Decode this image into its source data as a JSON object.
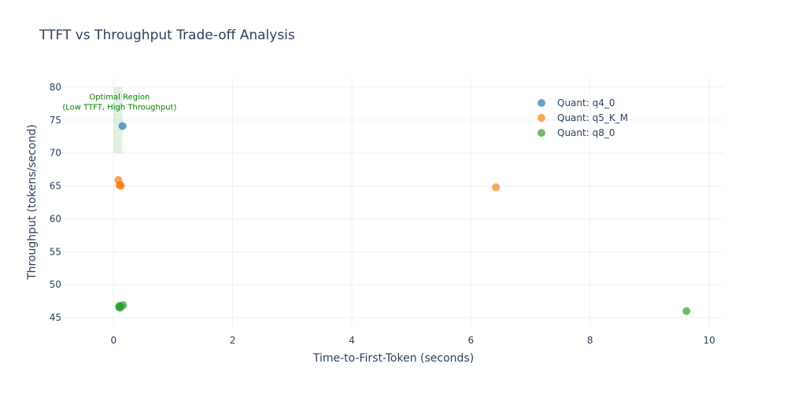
{
  "chart_data": {
    "type": "scatter",
    "title": "TTFT vs Throughput Trade-off Analysis",
    "xlabel": "Time-to-First-Token (seconds)",
    "ylabel": "Throughput (tokens/second)",
    "xlim": [
      -0.85,
      10.25
    ],
    "ylim": [
      43.7,
      81.3
    ],
    "xticks": [
      0,
      2,
      4,
      6,
      8,
      10
    ],
    "yticks": [
      45,
      50,
      55,
      60,
      65,
      70,
      75,
      80
    ],
    "grid": true,
    "legend_position": "top-right",
    "series": [
      {
        "name": "Quant: q4_0",
        "color": "#1f77b4",
        "points": [
          [
            0.15,
            74.1
          ]
        ]
      },
      {
        "name": "Quant: q5_K_M",
        "color": "#ff7f0e",
        "points": [
          [
            0.08,
            65.9
          ],
          [
            0.1,
            65.1
          ],
          [
            0.12,
            65.0
          ],
          [
            0.11,
            65.2
          ],
          [
            6.42,
            64.8
          ]
        ]
      },
      {
        "name": "Quant: q8_0",
        "color": "#2ca02c",
        "points": [
          [
            0.1,
            46.8
          ],
          [
            0.12,
            46.7
          ],
          [
            0.16,
            46.9
          ],
          [
            0.09,
            46.6
          ],
          [
            0.11,
            46.5
          ],
          [
            9.62,
            46.0
          ]
        ]
      }
    ],
    "optimal_region": {
      "x": [
        0,
        0.15
      ],
      "y": [
        70,
        80
      ]
    },
    "annotation": {
      "line1": "Optimal Region",
      "line2": "(Low TTFT, High Throughput)",
      "x": 0.1,
      "y": 78
    }
  }
}
